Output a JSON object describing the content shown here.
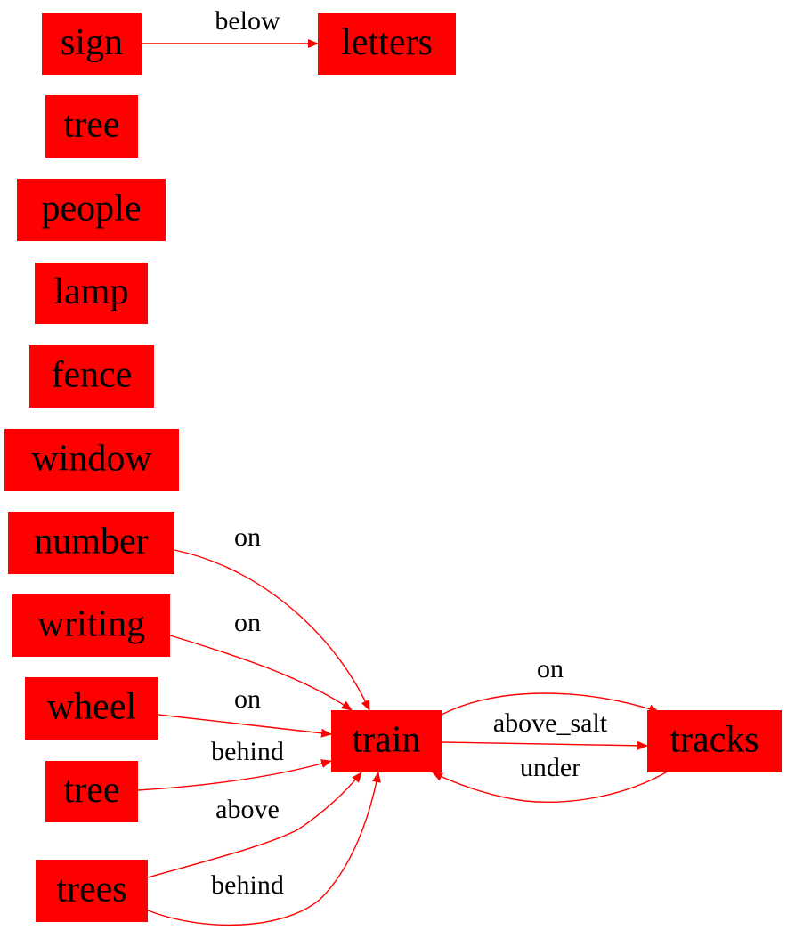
{
  "colors": {
    "node_fill": "#ff0000",
    "edge": "#ff0000",
    "text": "#000000",
    "background": "#ffffff"
  },
  "nodes": [
    {
      "id": "sign",
      "label": "sign"
    },
    {
      "id": "letters",
      "label": "letters"
    },
    {
      "id": "tree1",
      "label": "tree"
    },
    {
      "id": "people",
      "label": "people"
    },
    {
      "id": "lamp",
      "label": "lamp"
    },
    {
      "id": "fence",
      "label": "fence"
    },
    {
      "id": "window",
      "label": "window"
    },
    {
      "id": "number",
      "label": "number"
    },
    {
      "id": "writing",
      "label": "writing"
    },
    {
      "id": "wheel",
      "label": "wheel"
    },
    {
      "id": "tree2",
      "label": "tree"
    },
    {
      "id": "trees",
      "label": "trees"
    },
    {
      "id": "train",
      "label": "train"
    },
    {
      "id": "tracks",
      "label": "tracks"
    }
  ],
  "edges": [
    {
      "id": "e1",
      "from": "sign",
      "to": "letters",
      "label": "below"
    },
    {
      "id": "e2",
      "from": "number",
      "to": "train",
      "label": "on"
    },
    {
      "id": "e3",
      "from": "writing",
      "to": "train",
      "label": "on"
    },
    {
      "id": "e4",
      "from": "wheel",
      "to": "train",
      "label": "on"
    },
    {
      "id": "e5",
      "from": "tree2",
      "to": "train",
      "label": "behind"
    },
    {
      "id": "e6",
      "from": "trees",
      "to": "train",
      "label": "above"
    },
    {
      "id": "e7",
      "from": "trees",
      "to": "train",
      "label": "behind"
    },
    {
      "id": "e8",
      "from": "train",
      "to": "tracks",
      "label": "on"
    },
    {
      "id": "e9",
      "from": "train",
      "to": "tracks",
      "label": "above_salt"
    },
    {
      "id": "e10",
      "from": "tracks",
      "to": "train",
      "label": "under"
    }
  ]
}
